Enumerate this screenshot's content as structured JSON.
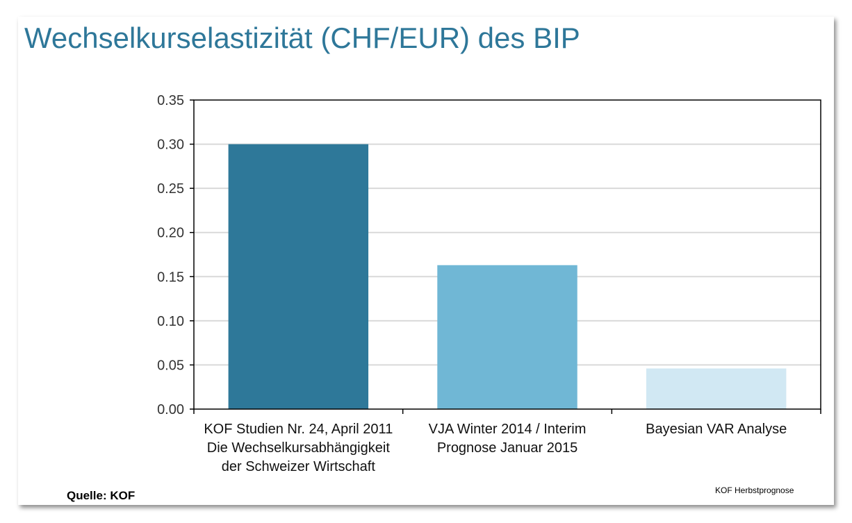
{
  "slide": {
    "title": "Wechselkurselastizität (CHF/EUR) des BIP",
    "source": "Quelle: KOF",
    "footer_note": "KOF Herbstprognose"
  },
  "chart_data": {
    "type": "bar",
    "categories": [
      "KOF Studien Nr. 24, April 2011\nDie Wechselkursabhängigkeit\nder Schweizer Wirtschaft",
      "VJA Winter 2014 / Interim\nPrognose Januar 2015",
      "Bayesian VAR Analyse"
    ],
    "values": [
      0.3,
      0.163,
      0.046
    ],
    "bar_colors": [
      "#2e7899",
      "#70b7d5",
      "#d1e8f3"
    ],
    "ylim": [
      0,
      0.35
    ],
    "yticks": [
      "0.00",
      "0.05",
      "0.10",
      "0.15",
      "0.20",
      "0.25",
      "0.30",
      "0.35"
    ],
    "grid": true,
    "xlabel": "",
    "ylabel": ""
  }
}
